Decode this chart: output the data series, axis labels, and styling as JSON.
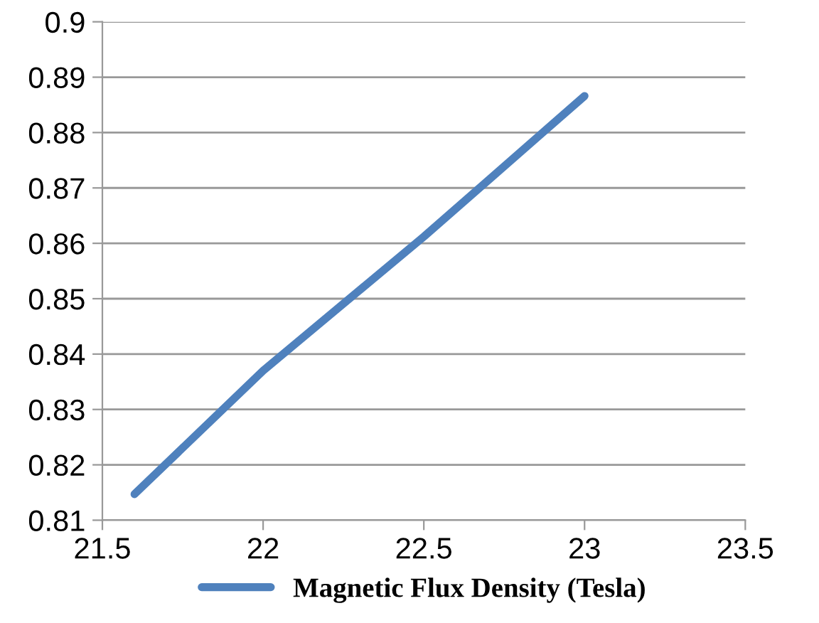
{
  "chart_data": {
    "type": "line",
    "x": [
      21.6,
      22.0,
      22.5,
      23.0
    ],
    "series": [
      {
        "name": "Magnetic Flux Density (Tesla)",
        "color": "#4f81bd",
        "values": [
          0.8147,
          0.837,
          0.8612,
          0.8866
        ]
      }
    ],
    "xlim": [
      21.5,
      23.5
    ],
    "xticks": [
      21.5,
      22,
      22.5,
      23,
      23.5
    ],
    "ylim": [
      0.81,
      0.9
    ],
    "yticks": [
      0.81,
      0.82,
      0.83,
      0.84,
      0.85,
      0.86,
      0.87,
      0.88,
      0.89,
      0.9
    ],
    "grid": "y",
    "legend": "bottom",
    "marker": "none",
    "line_style": "solid"
  }
}
